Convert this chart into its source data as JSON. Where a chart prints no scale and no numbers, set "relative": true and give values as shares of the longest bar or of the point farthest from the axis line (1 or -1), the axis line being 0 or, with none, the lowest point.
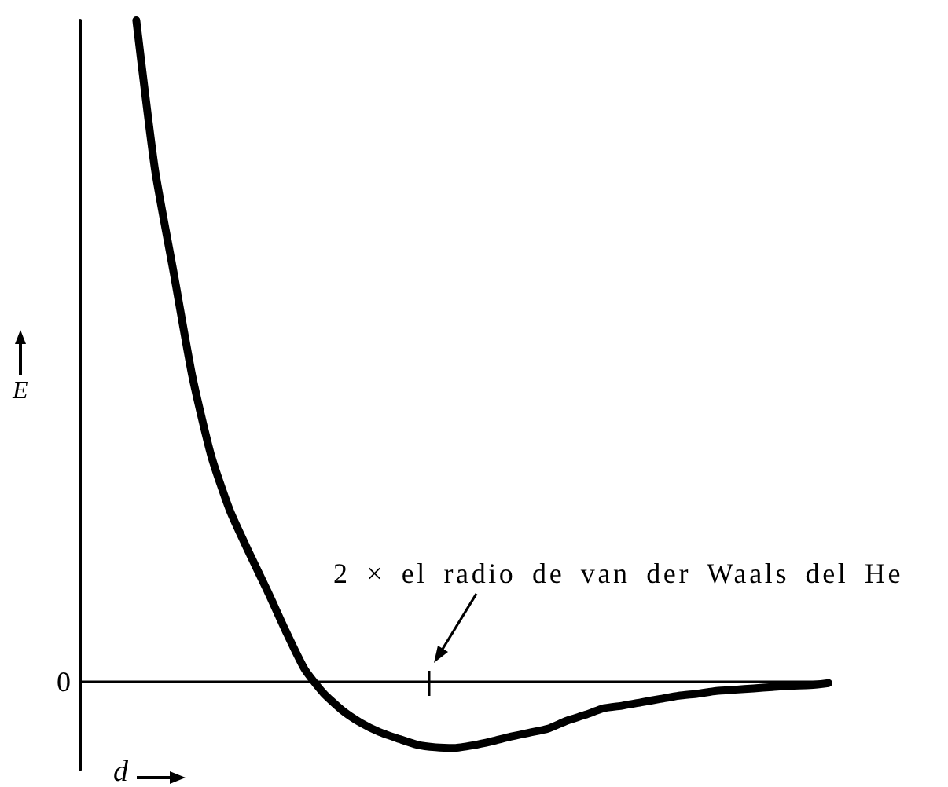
{
  "chart_data": {
    "type": "line",
    "relative": true,
    "categories": [
      null,
      null,
      null,
      null,
      null,
      null,
      null,
      null,
      null,
      null,
      null,
      null,
      null,
      null,
      null,
      null,
      null,
      null,
      null,
      null,
      null,
      null,
      null,
      null,
      null,
      null,
      null,
      null,
      null,
      null,
      null,
      null,
      null,
      null,
      null,
      null,
      null,
      null,
      null,
      null,
      null
    ],
    "values": [
      null,
      null,
      null,
      1,
      0.774,
      0.618,
      0.461,
      0.342,
      0.259,
      0.197,
      0.138,
      0.076,
      0.019,
      -0.017,
      -0.043,
      -0.062,
      -0.076,
      -0.086,
      -0.095,
      -0.099,
      -0.1,
      -0.096,
      -0.09,
      -0.083,
      -0.077,
      -0.071,
      -0.059,
      -0.05,
      -0.04,
      -0.036,
      -0.031,
      -0.026,
      -0.021,
      -0.018,
      -0.014,
      -0.012,
      -0.01,
      -0.008,
      -0.006,
      -0.005,
      -0.002
    ],
    "color": "#000000",
    "xlabel": "d",
    "ylabel": "E",
    "ref_lines": [
      {
        "axis": "y",
        "value": 0,
        "label": "0"
      }
    ],
    "annotations": [
      "2 × el radio de van der Waals del He"
    ],
    "marker": "none",
    "line_style": "solid"
  }
}
